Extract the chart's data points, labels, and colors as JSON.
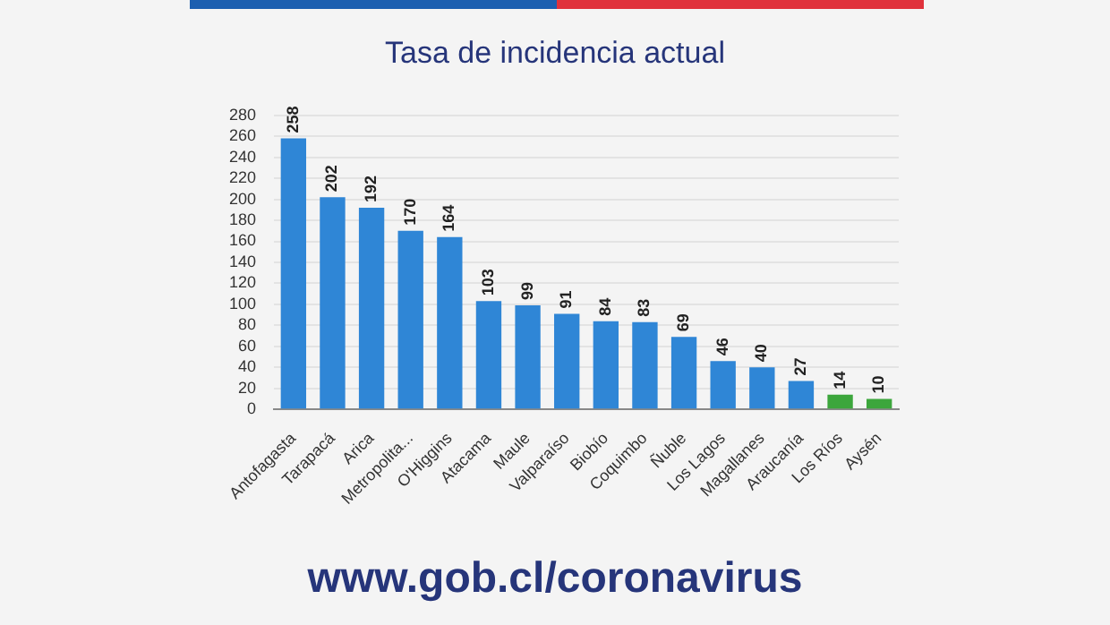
{
  "chart_data": {
    "type": "bar",
    "title": "Tasa de incidencia actual",
    "categories": [
      "Antofagasta",
      "Tarapacá",
      "Arica",
      "Metropolita...",
      "O'Higgins",
      "Atacama",
      "Maule",
      "Valparaíso",
      "Biobío",
      "Coquimbo",
      "Ñuble",
      "Los Lagos",
      "Magallanes",
      "Araucanía",
      "Los Ríos",
      "Aysén"
    ],
    "values": [
      258,
      202,
      192,
      170,
      164,
      103,
      99,
      91,
      84,
      83,
      69,
      46,
      40,
      27,
      14,
      10
    ],
    "colors": [
      "#2f86d6",
      "#2f86d6",
      "#2f86d6",
      "#2f86d6",
      "#2f86d6",
      "#2f86d6",
      "#2f86d6",
      "#2f86d6",
      "#2f86d6",
      "#2f86d6",
      "#2f86d6",
      "#2f86d6",
      "#2f86d6",
      "#2f86d6",
      "#3ca63c",
      "#3ca63c"
    ],
    "ylim": [
      0,
      280
    ],
    "yticks": [
      0,
      20,
      40,
      60,
      80,
      100,
      120,
      140,
      160,
      180,
      200,
      220,
      240,
      260,
      280
    ],
    "grid": "y",
    "data_labels": true,
    "legend": false,
    "annotations": [
      "www.gob.cl/coronavirus"
    ]
  }
}
